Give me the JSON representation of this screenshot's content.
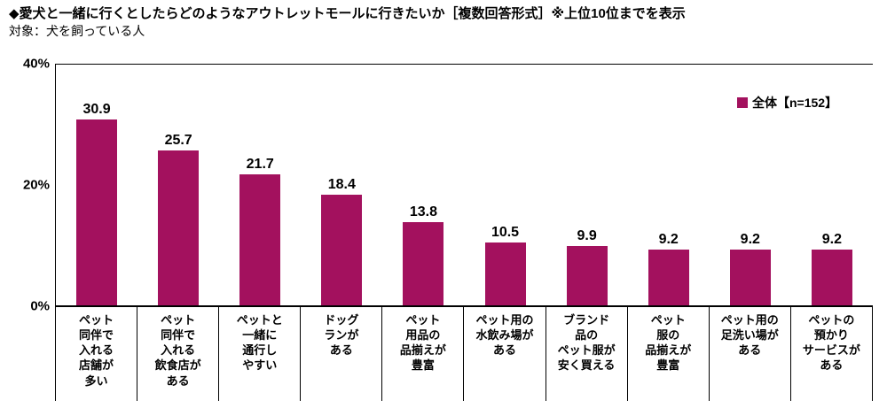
{
  "chart_data": {
    "type": "bar",
    "title": "◆愛犬と一緒に行くとしたらどのようなアウトレットモールに行きたいか［複数回答形式］※上位10位までを表示",
    "subtitle": "対象：犬を飼っている人",
    "legend": {
      "label": "全体【n=152】",
      "color": "#a3115e",
      "position": "top-right"
    },
    "unit": "%",
    "ylim": [
      0,
      40
    ],
    "grid": false,
    "bar_color": "#a3115e",
    "yticks": [
      {
        "value": 40,
        "label": "40%"
      },
      {
        "value": 20,
        "label": "20%"
      },
      {
        "value": 0,
        "label": "0%"
      }
    ],
    "categories": [
      "ペット同伴で入れる店舗が多い",
      "ペット同伴で入れる飲食店がある",
      "ペットと一緒に通行しやすい",
      "ドッグランがある",
      "ペット用品の品揃えが豊富",
      "ペット用の水飲み場がある",
      "ブランド品のペット服が安く買える",
      "ペット服の品揃えが豊富",
      "ペット用の足洗い場がある",
      "ペットの預かりサービスがある"
    ],
    "category_display": [
      "ペット\n同伴で\n入れる\n店舗が\n多い",
      "ペット\n同伴で\n入れる\n飲食店が\nある",
      "ペットと\n一緒に\n通行し\nやすい",
      "ドッグ\nランが\nある",
      "ペット\n用品の\n品揃えが\n豊富",
      "ペット用の\n水飲み場が\nある",
      "ブランド\n品の\nペット服が\n安く買える",
      "ペット\n服の\n品揃えが\n豊富",
      "ペット用の\n足洗い場が\nある",
      "ペットの\n預かり\nサービスが\nある"
    ],
    "values": [
      30.9,
      25.7,
      21.7,
      18.4,
      13.8,
      10.5,
      9.9,
      9.2,
      9.2,
      9.2
    ]
  }
}
